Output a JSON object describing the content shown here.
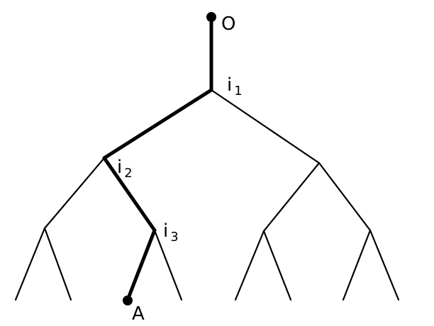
{
  "diagram": {
    "labels": {
      "root": "O",
      "leaf": "A",
      "i1_base": "i",
      "i1_sub": "1",
      "i2_base": "i",
      "i2_sub": "2",
      "i3_base": "i",
      "i3_sub": "3"
    },
    "colors": {
      "ink": "#000000",
      "background": "#ffffff"
    }
  }
}
